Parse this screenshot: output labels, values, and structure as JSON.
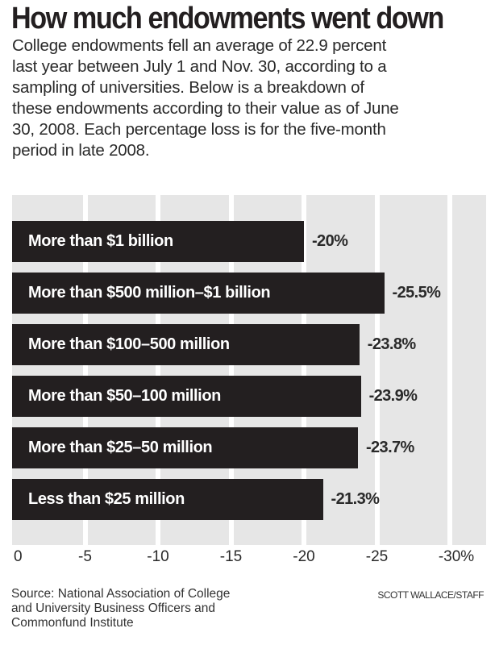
{
  "chart_data": {
    "type": "bar",
    "orientation": "horizontal",
    "title": "How much endowments went down",
    "description_lines": [
      "College endowments fell an average of 22.9 percent",
      "last year between July 1 and Nov. 30, according to a",
      "sampling of universities. Below is a breakdown of",
      "these endowments according to their value as of June",
      "30, 2008. Each percentage loss is for the five-month",
      "period in late 2008."
    ],
    "categories": [
      "More than $1 billion",
      "More than $500 million–$1 billion",
      "More than $100–500 million",
      "More than $50–100 million",
      "More than $25–50 million",
      "Less than $25 million"
    ],
    "values": [
      -20,
      -25.5,
      -23.8,
      -23.9,
      -23.7,
      -21.3
    ],
    "value_labels": [
      "-20%",
      "-25.5%",
      "-23.8%",
      "-23.9%",
      "-23.7%",
      "-21.3%"
    ],
    "x_ticks": [
      0,
      -5,
      -10,
      -15,
      -20,
      -25,
      -30
    ],
    "x_tick_labels": [
      "0",
      "-5",
      "-10",
      "-15",
      "-20",
      "-25",
      "-30%"
    ],
    "xlim": [
      0,
      -32.5
    ],
    "grid": true,
    "xlabel": "",
    "ylabel": "",
    "colors": {
      "bar": "#231f20",
      "background": "#e6e6e6",
      "grid": "#ffffff"
    }
  },
  "footer": {
    "source_lines": [
      "Source: National Association of College",
      "and University Business Officers and",
      "Commonfund Institute"
    ],
    "credit": "SCOTT WALLACE/STAFF"
  }
}
